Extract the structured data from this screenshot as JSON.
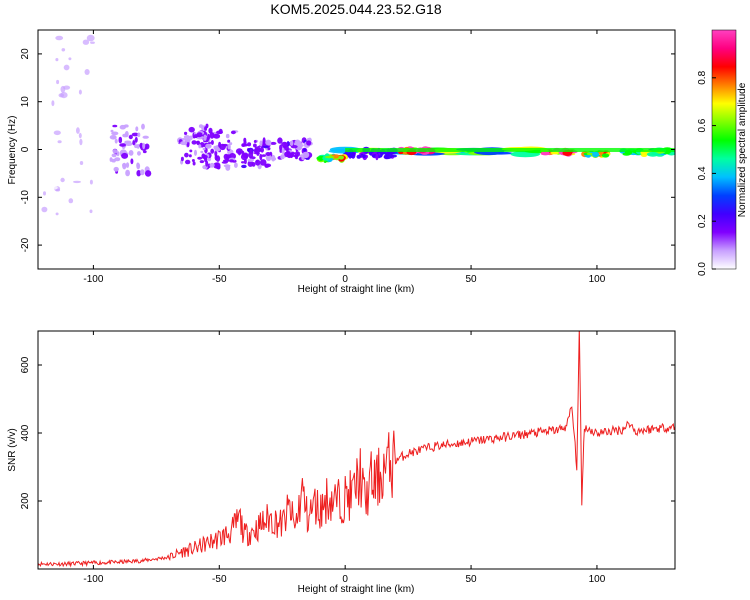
{
  "title": "KOM5.2025.044.23.52.G18",
  "chart_data": [
    {
      "type": "heatmap",
      "xlabel": "Height of straight line (km)",
      "ylabel": "Frequency (Hz)",
      "xlim": [
        -122,
        131
      ],
      "ylim": [
        -25,
        25
      ],
      "xticks": [
        -100,
        -50,
        0,
        50,
        100
      ],
      "yticks": [
        -20,
        -10,
        0,
        10,
        20
      ],
      "colorbar": {
        "label": "Normalized spectral amplitude",
        "range": [
          0,
          1
        ],
        "ticks": [
          "0.0",
          "0.2",
          "0.4",
          "0.6",
          "0.8"
        ],
        "colormap": "rainbow",
        "stops": [
          "#ffffff",
          "#c8a0ff",
          "#8000ff",
          "#4000ff",
          "#0040ff",
          "#00c0ff",
          "#00ffa0",
          "#00ff00",
          "#80ff00",
          "#ffff00",
          "#ff8000",
          "#ff0000",
          "#ff0080",
          "#ff40c0"
        ]
      },
      "blobs": [
        {
          "x": 40,
          "y": -0.5,
          "w": 80,
          "h": 1.2,
          "value": 0.5
        },
        {
          "x": 28,
          "y": -0.3,
          "w": 12,
          "h": 0.7,
          "value": 0.95
        },
        {
          "x": 85,
          "y": -0.6,
          "w": 12,
          "h": 0.7,
          "value": 0.95
        },
        {
          "x": 100,
          "y": -1.0,
          "w": 10,
          "h": 0.6,
          "value": 0.6
        },
        {
          "x": 120,
          "y": -0.6,
          "w": 20,
          "h": 0.8,
          "value": 0.55
        },
        {
          "x": 10,
          "y": -0.8,
          "w": 20,
          "h": 1.6,
          "value": 0.2
        },
        {
          "x": -5,
          "y": -1.8,
          "w": 10,
          "h": 0.8,
          "value": 0.6
        },
        {
          "x": -20,
          "y": 0,
          "w": 12,
          "h": 4,
          "value": 0.15
        },
        {
          "x": -35,
          "y": -1,
          "w": 14,
          "h": 6,
          "value": 0.14
        },
        {
          "x": -50,
          "y": 0,
          "w": 14,
          "h": 8,
          "value": 0.13
        },
        {
          "x": -60,
          "y": 1,
          "w": 12,
          "h": 8,
          "value": 0.12
        },
        {
          "x": -85,
          "y": 0,
          "w": 16,
          "h": 10,
          "value": 0.1
        },
        {
          "x": -110,
          "y": 5,
          "w": 20,
          "h": 40,
          "value": 0.04
        }
      ]
    },
    {
      "type": "line",
      "xlabel": "Height of straight line (km)",
      "ylabel": "SNR (v/v)",
      "xlim": [
        -122,
        131
      ],
      "ylim": [
        0,
        700
      ],
      "xticks": [
        -100,
        -50,
        0,
        50,
        100
      ],
      "yticks": [
        200,
        400,
        600
      ],
      "color": "#ee2020",
      "series": [
        {
          "x": [
            -122,
            -110,
            -100,
            -90,
            -80,
            -70,
            -65,
            -60,
            -55,
            -50,
            -45,
            -42,
            -40,
            -35,
            -30,
            -25,
            -22,
            -20,
            -17,
            -15,
            -12,
            -10,
            -7,
            -5,
            -2,
            0,
            3,
            6,
            8,
            10,
            12,
            15,
            20,
            25,
            30,
            35,
            40,
            45,
            50,
            55,
            60,
            65,
            70,
            75,
            80,
            85,
            88,
            90,
            92,
            93,
            94,
            95,
            97,
            100,
            105,
            110,
            113,
            115,
            120,
            125,
            131
          ],
          "y": [
            15,
            15,
            18,
            20,
            25,
            35,
            50,
            60,
            75,
            90,
            110,
            150,
            100,
            120,
            150,
            130,
            180,
            120,
            230,
            150,
            190,
            170,
            210,
            200,
            200,
            210,
            220,
            280,
            190,
            260,
            250,
            290,
            320,
            340,
            350,
            360,
            365,
            370,
            375,
            380,
            385,
            390,
            395,
            400,
            405,
            410,
            420,
            480,
            300,
            700,
            200,
            420,
            410,
            400,
            405,
            410,
            430,
            405,
            410,
            415,
            418
          ]
        }
      ]
    }
  ]
}
